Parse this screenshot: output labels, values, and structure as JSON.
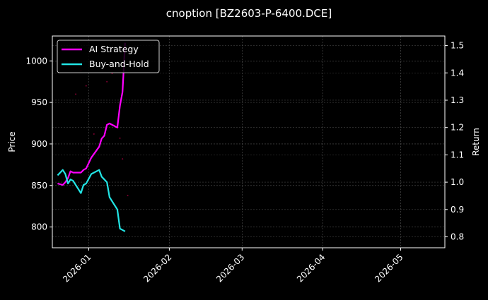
{
  "chart_data": {
    "type": "line",
    "title": "cnoption [BZ2603-P-6400.DCE]",
    "xlabel": "",
    "ylabel": "Price",
    "ylabel_right": "Return",
    "x_ticks": [
      "2026-01",
      "2026-02",
      "2026-03",
      "2026-04",
      "2026-05"
    ],
    "y_ticks_left": [
      800,
      850,
      900,
      950,
      1000
    ],
    "y_ticks_right": [
      0.8,
      0.9,
      1.0,
      1.1,
      1.2,
      1.3,
      1.4,
      1.5
    ],
    "ylim_left": [
      775,
      1030
    ],
    "ylim_right": [
      0.76,
      1.535
    ],
    "grid": true,
    "legend_position": "upper left",
    "series": [
      {
        "name": "AI Strategy",
        "color": "#ff00ff",
        "axis": "right",
        "x": [
          "2025-12-20",
          "2025-12-22",
          "2025-12-23",
          "2025-12-24",
          "2025-12-25",
          "2025-12-26",
          "2025-12-29",
          "2025-12-30",
          "2025-12-31",
          "2026-01-02",
          "2026-01-05",
          "2026-01-06",
          "2026-01-07",
          "2026-01-08",
          "2026-01-09",
          "2026-01-12",
          "2026-01-13",
          "2026-01-14",
          "2026-01-15"
        ],
        "values": [
          0.995,
          0.99,
          1.0,
          1.015,
          1.04,
          1.035,
          1.035,
          1.045,
          1.05,
          1.09,
          1.13,
          1.16,
          1.17,
          1.21,
          1.215,
          1.2,
          1.28,
          1.33,
          1.51
        ]
      },
      {
        "name": "Buy-and-Hold",
        "color": "#22e5e5",
        "axis": "right",
        "x": [
          "2025-12-20",
          "2025-12-22",
          "2025-12-23",
          "2025-12-24",
          "2025-12-25",
          "2025-12-26",
          "2025-12-29",
          "2025-12-30",
          "2025-12-31",
          "2026-01-02",
          "2026-01-05",
          "2026-01-06",
          "2026-01-07",
          "2026-01-08",
          "2026-01-09",
          "2026-01-12",
          "2026-01-13",
          "2026-01-14",
          "2026-01-15"
        ],
        "values": [
          1.025,
          1.045,
          1.03,
          0.995,
          1.01,
          1.005,
          0.96,
          0.99,
          0.995,
          1.03,
          1.045,
          1.02,
          1.01,
          1.0,
          0.945,
          0.9,
          0.83,
          0.825,
          0.82
        ]
      }
    ],
    "scatter_markers": {
      "color": "#800030",
      "note": "faint price dots",
      "points": [
        [
          "2025-12-27",
          960
        ],
        [
          "2025-12-29",
          988
        ],
        [
          "2025-12-31",
          970
        ],
        [
          "2026-01-03",
          912
        ],
        [
          "2026-01-08",
          975
        ],
        [
          "2026-01-10",
          985
        ],
        [
          "2026-01-13",
          907
        ],
        [
          "2026-01-14",
          882
        ],
        [
          "2026-01-16",
          838
        ]
      ]
    }
  }
}
